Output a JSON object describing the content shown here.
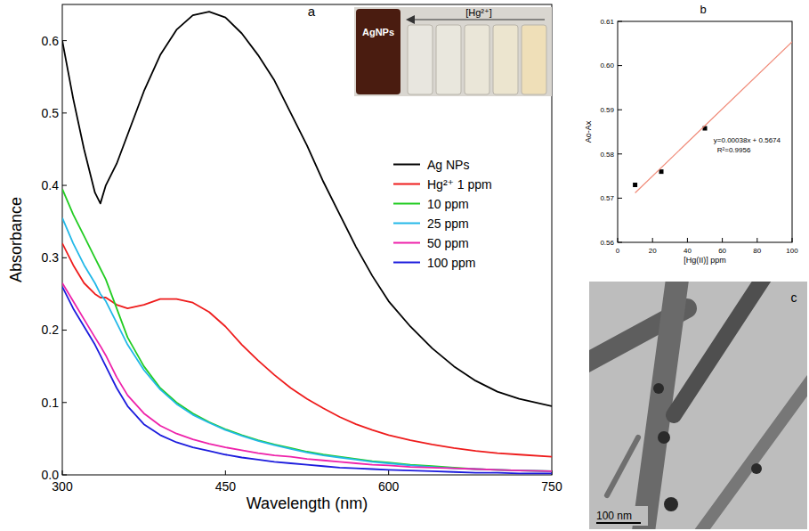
{
  "chart_data": [
    {
      "type": "line",
      "title": "a",
      "x_label": "Wavelength (nm)",
      "y_label": "Absorbance",
      "x": [
        300,
        310,
        320,
        330,
        335,
        340,
        350,
        360,
        375,
        390,
        405,
        420,
        435,
        450,
        465,
        480,
        495,
        510,
        525,
        540,
        555,
        570,
        585,
        600,
        620,
        640,
        660,
        680,
        700,
        720,
        750
      ],
      "series": [
        {
          "name": "Ag NPs",
          "color": "#000000",
          "values": [
            0.6,
            0.52,
            0.45,
            0.39,
            0.375,
            0.4,
            0.43,
            0.47,
            0.53,
            0.58,
            0.615,
            0.635,
            0.64,
            0.632,
            0.61,
            0.58,
            0.545,
            0.5,
            0.455,
            0.405,
            0.36,
            0.315,
            0.275,
            0.24,
            0.205,
            0.175,
            0.15,
            0.13,
            0.115,
            0.105,
            0.095
          ]
        },
        {
          "name": "Hg²⁺ 1 ppm",
          "color": "#ee1c1c",
          "values": [
            0.32,
            0.29,
            0.265,
            0.25,
            0.245,
            0.245,
            0.235,
            0.23,
            0.235,
            0.243,
            0.243,
            0.238,
            0.225,
            0.205,
            0.18,
            0.158,
            0.138,
            0.12,
            0.105,
            0.092,
            0.08,
            0.07,
            0.062,
            0.055,
            0.048,
            0.042,
            0.037,
            0.033,
            0.03,
            0.028,
            0.025
          ]
        },
        {
          "name": "10 ppm",
          "color": "#22cc22",
          "values": [
            0.395,
            0.36,
            0.33,
            0.3,
            0.285,
            0.27,
            0.23,
            0.19,
            0.15,
            0.12,
            0.1,
            0.085,
            0.073,
            0.063,
            0.055,
            0.048,
            0.042,
            0.037,
            0.032,
            0.028,
            0.025,
            0.022,
            0.019,
            0.017,
            0.014,
            0.012,
            0.01,
            0.008,
            0.007,
            0.006,
            0.005
          ]
        },
        {
          "name": "25 ppm",
          "color": "#22b8e8",
          "values": [
            0.355,
            0.32,
            0.29,
            0.265,
            0.25,
            0.24,
            0.21,
            0.18,
            0.145,
            0.118,
            0.098,
            0.083,
            0.072,
            0.062,
            0.054,
            0.047,
            0.041,
            0.036,
            0.031,
            0.027,
            0.024,
            0.021,
            0.018,
            0.016,
            0.013,
            0.011,
            0.009,
            0.008,
            0.007,
            0.006,
            0.005
          ]
        },
        {
          "name": "50 ppm",
          "color": "#ee22aa",
          "values": [
            0.265,
            0.24,
            0.215,
            0.19,
            0.178,
            0.165,
            0.135,
            0.11,
            0.085,
            0.068,
            0.057,
            0.049,
            0.043,
            0.038,
            0.034,
            0.03,
            0.027,
            0.025,
            0.022,
            0.02,
            0.018,
            0.016,
            0.014,
            0.013,
            0.011,
            0.01,
            0.009,
            0.008,
            0.007,
            0.006,
            0.005
          ]
        },
        {
          "name": "100 ppm",
          "color": "#1c1cdd",
          "values": [
            0.26,
            0.23,
            0.205,
            0.18,
            0.165,
            0.15,
            0.12,
            0.095,
            0.07,
            0.055,
            0.045,
            0.038,
            0.033,
            0.028,
            0.024,
            0.021,
            0.018,
            0.016,
            0.014,
            0.012,
            0.01,
            0.009,
            0.008,
            0.007,
            0.006,
            0.005,
            0.004,
            0.003,
            0.003,
            0.002,
            0.002
          ]
        }
      ],
      "xlim": [
        300,
        750
      ],
      "xticks": [
        300,
        450,
        600,
        750
      ],
      "ylim": [
        0,
        0.65
      ],
      "yticks": [
        {
          "value": 0,
          "label": "0.0"
        },
        0.1,
        0.2,
        0.3,
        0.4,
        0.5,
        0.6
      ],
      "legend": "right",
      "annotations": [
        "AgNPs",
        "[Hg²⁺]"
      ]
    },
    {
      "type": "scatter",
      "title": "b",
      "x_label": "[Hg(II)] ppm",
      "y_label": "Ao-Ax",
      "series": [
        {
          "type": "scatter",
          "marker": "square",
          "color": "#000000",
          "x": [
            10,
            25,
            50
          ],
          "values": [
            0.573,
            0.576,
            0.5858
          ]
        },
        {
          "type": "line",
          "color": "#f08a78",
          "x": [
            10,
            100
          ],
          "values": [
            0.5712,
            0.6054
          ]
        }
      ],
      "xlim": [
        0,
        100
      ],
      "xticks": [
        0,
        20,
        40,
        60,
        80,
        100
      ],
      "ylim": [
        0.56,
        0.61
      ],
      "yticks": [
        0.56,
        0.57,
        0.58,
        0.59,
        {
          "value": 0.6,
          "label": "0.60"
        },
        0.61
      ],
      "annotations": [
        "y=0.00038x + 0.5674",
        "R²=0.9956"
      ]
    },
    {
      "type": "image",
      "title": "c",
      "annotations": [
        "100 nm"
      ]
    }
  ]
}
